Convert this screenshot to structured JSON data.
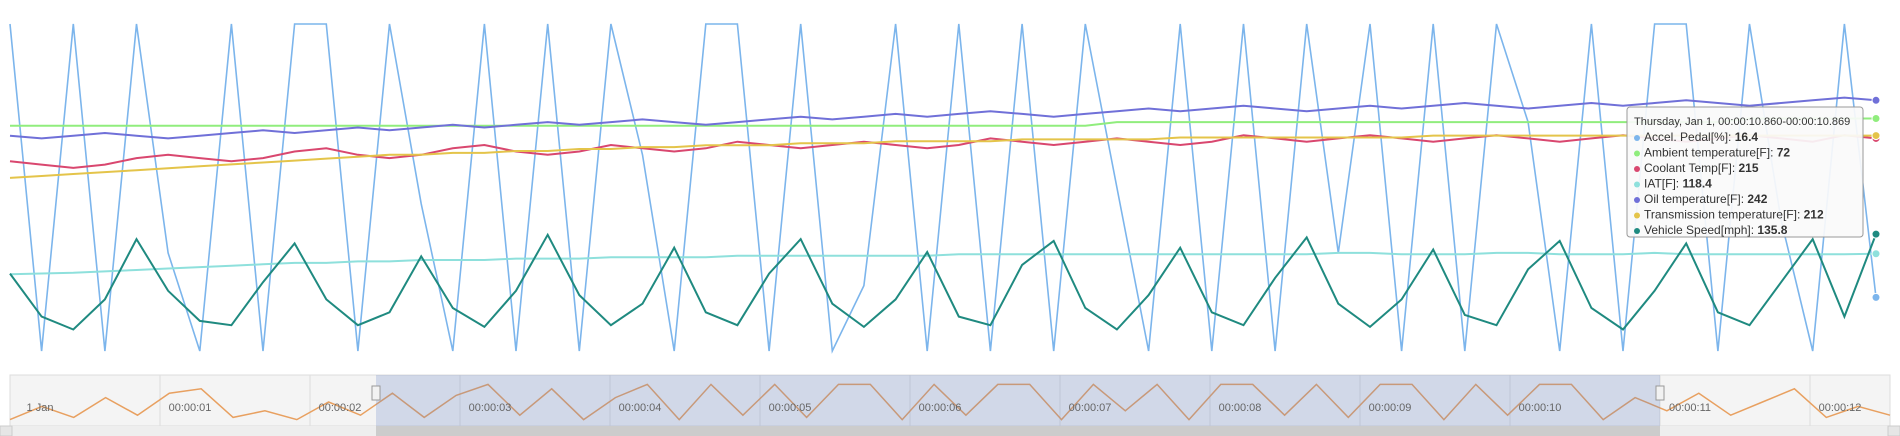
{
  "chart_data": {
    "type": "line",
    "series": [
      {
        "name": "Accel. Pedal[%]",
        "color": "#7cb5ec",
        "ylim": [
          0,
          100
        ],
        "values": [
          100,
          0,
          100,
          0,
          100,
          30,
          0,
          100,
          0,
          100,
          100,
          0,
          100,
          45,
          0,
          100,
          0,
          100,
          0,
          100,
          60,
          0,
          100,
          100,
          0,
          100,
          0,
          20,
          100,
          0,
          100,
          0,
          100,
          0,
          100,
          50,
          0,
          100,
          0,
          100,
          0,
          100,
          30,
          100,
          0,
          100,
          0,
          100,
          70,
          0,
          100,
          0,
          100,
          100,
          0,
          100,
          40,
          0,
          100,
          16.4
        ]
      },
      {
        "name": "Ambient temperature[F]",
        "color": "#90ed7d",
        "ylim": [
          40,
          85
        ],
        "values": [
          71,
          71,
          71,
          71,
          71,
          71,
          71,
          71,
          71,
          71,
          71,
          71,
          71,
          71,
          71,
          71,
          71,
          71,
          71,
          71,
          71,
          71,
          71,
          71,
          71,
          71,
          71,
          71,
          71,
          71,
          71,
          71,
          71,
          71,
          71,
          71.5,
          71.5,
          71.5,
          71.5,
          71.5,
          71.5,
          71.5,
          71.5,
          71.5,
          71.5,
          71.5,
          71.5,
          71.5,
          71.5,
          71.5,
          71.5,
          71.5,
          71.5,
          71.5,
          71.5,
          72,
          72,
          72,
          72,
          72
        ]
      },
      {
        "name": "Coolant Temp[F]",
        "color": "#d9476f",
        "ylim": [
          150,
          250
        ],
        "values": [
          208,
          207,
          206,
          207,
          209,
          210,
          209,
          208,
          209,
          211,
          212,
          210,
          209,
          210,
          212,
          213,
          211,
          210,
          211,
          213,
          212,
          211,
          212,
          214,
          213,
          212,
          213,
          214,
          213,
          212,
          213,
          215,
          214,
          213,
          214,
          215,
          214,
          213,
          214,
          216,
          215,
          214,
          215,
          216,
          215,
          214,
          215,
          216,
          215,
          214,
          215,
          216,
          215,
          214,
          215,
          216,
          215,
          214,
          216,
          215
        ]
      },
      {
        "name": "IAT[F]",
        "color": "#8ee0dc",
        "ylim": [
          50,
          280
        ],
        "values": [
          104,
          104.5,
          105,
          106,
          107,
          108,
          109,
          110,
          111,
          112,
          112,
          113,
          113,
          114,
          114,
          114,
          115,
          115,
          115,
          116,
          116,
          116,
          116,
          117,
          117,
          117,
          117,
          117,
          117,
          117,
          118,
          118,
          118,
          118,
          118,
          118,
          118,
          118,
          118,
          118,
          118,
          118,
          119,
          119,
          118,
          118,
          118,
          119,
          119,
          118,
          118,
          118,
          119,
          118,
          118,
          118,
          118,
          118,
          118,
          118.4
        ]
      },
      {
        "name": "Oil temperature[F]",
        "color": "#7070d8",
        "ylim": [
          150,
          270
        ],
        "values": [
          229,
          228,
          229,
          230,
          229,
          228,
          229,
          230,
          231,
          230,
          231,
          232,
          231,
          232,
          233,
          232,
          233,
          234,
          233,
          234,
          235,
          234,
          233,
          234,
          235,
          236,
          235,
          236,
          237,
          236,
          237,
          238,
          237,
          236,
          237,
          238,
          239,
          238,
          239,
          240,
          239,
          238,
          239,
          240,
          239,
          240,
          241,
          240,
          239,
          240,
          241,
          240,
          241,
          242,
          241,
          240,
          241,
          242,
          243,
          242
        ]
      },
      {
        "name": "Transmission temperature[F]",
        "color": "#e4c44a",
        "ylim": [
          100,
          270
        ],
        "values": [
          190,
          191,
          192,
          193,
          194,
          195,
          196,
          197,
          198,
          199,
          200,
          201,
          202,
          202,
          203,
          203,
          204,
          204,
          205,
          205,
          206,
          206,
          207,
          207,
          207,
          208,
          208,
          208,
          209,
          209,
          209,
          209,
          210,
          210,
          210,
          210,
          210,
          211,
          211,
          211,
          211,
          211,
          211,
          211,
          211,
          212,
          212,
          212,
          212,
          212,
          212,
          212,
          212,
          212,
          212,
          212,
          212,
          212,
          212,
          212
        ]
      },
      {
        "name": "Vehicle Speed[mph]",
        "color": "#1f8a80",
        "ylim": [
          0,
          380
        ],
        "values": [
          90,
          40,
          25,
          60,
          130,
          70,
          35,
          30,
          80,
          125,
          60,
          30,
          45,
          110,
          50,
          28,
          70,
          135,
          65,
          30,
          55,
          120,
          45,
          30,
          90,
          130,
          55,
          28,
          60,
          115,
          40,
          30,
          100,
          128,
          50,
          25,
          65,
          120,
          45,
          30,
          85,
          132,
          55,
          28,
          60,
          118,
          42,
          30,
          95,
          128,
          50,
          25,
          70,
          125,
          45,
          30,
          80,
          130,
          40,
          135.8
        ]
      }
    ],
    "tooltip": {
      "title": "Thursday, Jan 1, 00:00:10.860-00:00:10.869",
      "separator": ": "
    },
    "navigator": {
      "color": "#e8a060",
      "ylim": [
        0,
        100
      ],
      "values": [
        10,
        40,
        15,
        60,
        20,
        70,
        80,
        15,
        30,
        10,
        50,
        20,
        70,
        15,
        65,
        90,
        20,
        80,
        10,
        60,
        90,
        10,
        90,
        20,
        90,
        15,
        90,
        90,
        10,
        90,
        20,
        90,
        90,
        10,
        90,
        30,
        90,
        10,
        90,
        90,
        20,
        90,
        15,
        90,
        90,
        10,
        90,
        20,
        90,
        90,
        10,
        60,
        30,
        70,
        20,
        50,
        80,
        15,
        40,
        20
      ],
      "xticks": [
        "1 Jan",
        "00:00:01",
        "00:00:02",
        "00:00:03",
        "00:00:04",
        "00:00:05",
        "00:00:06",
        "00:00:07",
        "00:00:08",
        "00:00:09",
        "00:00:10",
        "00:00:11",
        "00:00:12"
      ]
    }
  }
}
